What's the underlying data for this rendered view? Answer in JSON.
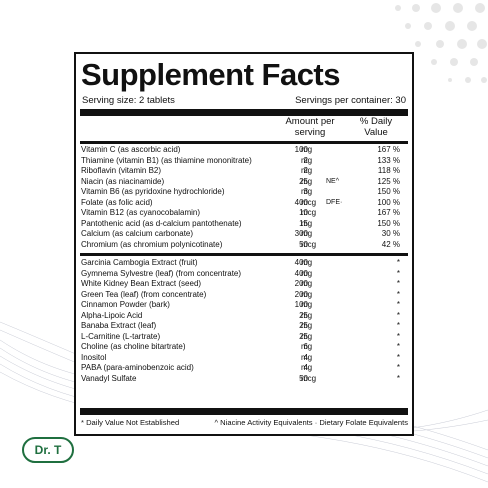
{
  "title": "Supplement Facts",
  "serving_size": "Serving size: 2 tablets",
  "servings_per_container": "Servings per container: 30",
  "col_amount": "Amount per serving",
  "col_dv": "% Daily Value",
  "group1": [
    {
      "name": "Vitamin C (as ascorbic acid)",
      "amount": "100",
      "unit": "mg",
      "flag": "",
      "dv": "167 %"
    },
    {
      "name": "Thiamine (vitamin B1) (as thiamine mononitrate)",
      "amount": "2",
      "unit": "mg",
      "flag": "",
      "dv": "133 %"
    },
    {
      "name": "Riboflavin (vitamin B2)",
      "amount": "2",
      "unit": "mg",
      "flag": "",
      "dv": "118 %"
    },
    {
      "name": "Niacin (as niacinamide)",
      "amount": "25",
      "unit": "mg",
      "flag": "NE^",
      "dv": "125 %"
    },
    {
      "name": "Vitamin B6 (as pyridoxine hydrochloride)",
      "amount": "3",
      "unit": "mg",
      "flag": "",
      "dv": "150 %"
    },
    {
      "name": "Folate (as folic acid)",
      "amount": "400",
      "unit": "mcg",
      "flag": "DFE·",
      "dv": "100 %"
    },
    {
      "name": "Vitamin B12 (as cyanocobalamin)",
      "amount": "10",
      "unit": "mcg",
      "flag": "",
      "dv": "167 %"
    },
    {
      "name": "Pantothenic acid (as d-calcium pantothenate)",
      "amount": "15",
      "unit": "mg",
      "flag": "",
      "dv": "150 %"
    },
    {
      "name": "Calcium (as calcium carbonate)",
      "amount": "300",
      "unit": "mg",
      "flag": "",
      "dv": "30 %"
    },
    {
      "name": "Chromium (as chromium polynicotinate)",
      "amount": "50",
      "unit": "mcg",
      "flag": "",
      "dv": "42 %"
    }
  ],
  "group2": [
    {
      "name": "Garcinia Cambogia Extract (fruit)",
      "amount": "400",
      "unit": "mg",
      "dv": "*"
    },
    {
      "name": "Gymnema Sylvestre (leaf) (from concentrate)",
      "amount": "400",
      "unit": "mg",
      "dv": "*"
    },
    {
      "name": "White Kidney Bean Extract (seed)",
      "amount": "200",
      "unit": "mg",
      "dv": "*"
    },
    {
      "name": "Green Tea (leaf) (from concentrate)",
      "amount": "200",
      "unit": "mg",
      "dv": "*"
    },
    {
      "name": "Cinnamon Powder (bark)",
      "amount": "100",
      "unit": "mg",
      "dv": "*"
    },
    {
      "name": "Alpha-Lipoic Acid",
      "amount": "25",
      "unit": "mg",
      "dv": "*"
    },
    {
      "name": "Banaba Extract (leaf)",
      "amount": "25",
      "unit": "mg",
      "dv": "*"
    },
    {
      "name": "L-Carnitine (L-tartrate)",
      "amount": "25",
      "unit": "mg",
      "dv": "*"
    },
    {
      "name": "Choline (as choline bitartrate)",
      "amount": "6",
      "unit": "mg",
      "dv": "*"
    },
    {
      "name": "Inositol",
      "amount": "4",
      "unit": "mg",
      "dv": "*"
    },
    {
      "name": "PABA (para-aminobenzoic acid)",
      "amount": "4",
      "unit": "mg",
      "dv": "*"
    },
    {
      "name": "Vanadyl Sulfate",
      "amount": "50",
      "unit": "mcg",
      "dv": "*"
    }
  ],
  "footnote_left": "* Daily Value Not Established",
  "footnote_right": "^ Niacine Activity Equivalents · Dietary Folate Equivalents",
  "logo_text": "Dr. T",
  "colors": {
    "logo": "#1f6f3f",
    "ink": "#111111"
  }
}
